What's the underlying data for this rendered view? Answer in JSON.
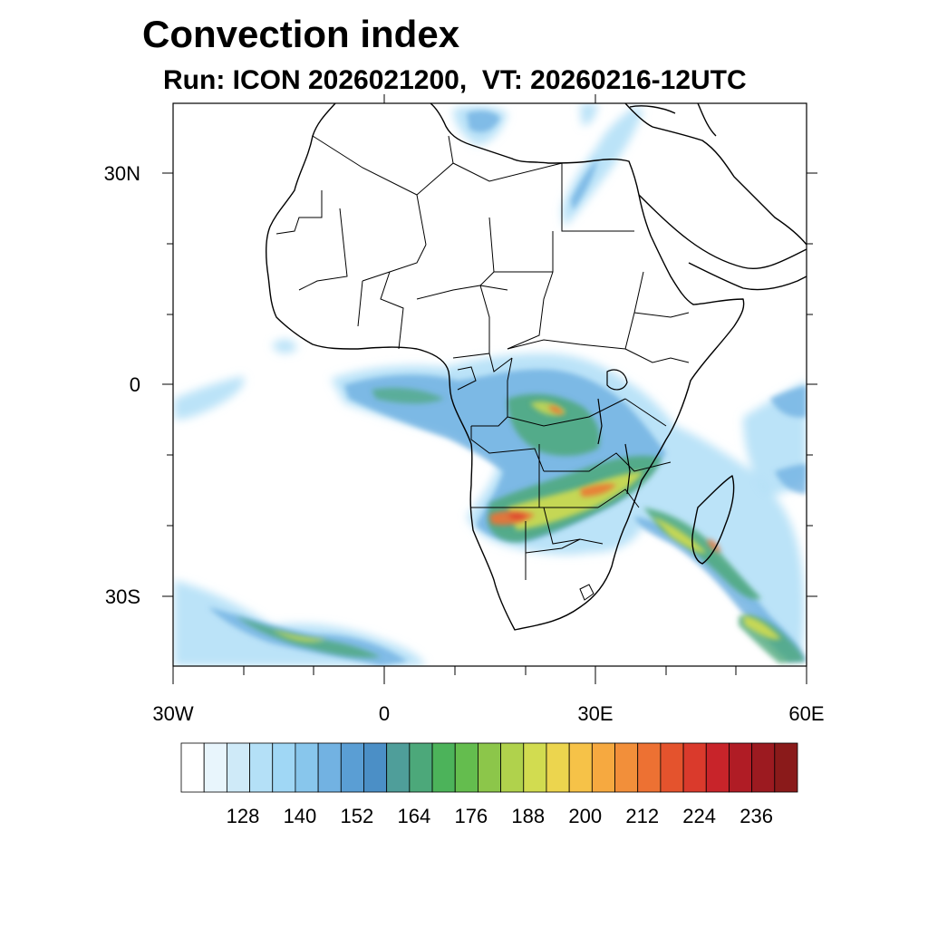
{
  "title": "Convection index",
  "subtitle": "Run: ICON 2026021200,  VT: 20260216-12UTC",
  "map": {
    "region": "Africa",
    "field": "Convection index",
    "lon_range": [
      -30,
      60
    ],
    "lat_range": [
      -40,
      40
    ],
    "y_ticks": [
      "30N",
      "0",
      "30S"
    ],
    "x_ticks": [
      "30W",
      "0",
      "30E",
      "60E"
    ]
  },
  "colorbar": {
    "colors": [
      "#ffffff",
      "#e8f5fc",
      "#cfeaf8",
      "#b4e0f7",
      "#a0d7f5",
      "#88c6ec",
      "#72b2e2",
      "#5a9ed4",
      "#4b8fc6",
      "#4f9e9a",
      "#4ca87a",
      "#4cb35a",
      "#64bd4e",
      "#8cc64a",
      "#b0d24c",
      "#d2dc50",
      "#ecd54e",
      "#f6c248",
      "#f6a940",
      "#f28f3a",
      "#ed7133",
      "#e4532d",
      "#da3a2c",
      "#c8242a",
      "#b01c25",
      "#9c1a20",
      "#8a1a1a"
    ],
    "labels": [
      "128",
      "140",
      "152",
      "164",
      "176",
      "188",
      "200",
      "212",
      "224",
      "236"
    ]
  }
}
